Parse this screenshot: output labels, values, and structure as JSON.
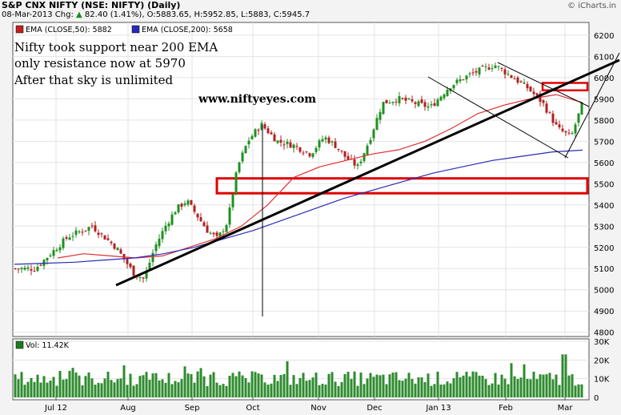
{
  "header": {
    "title": "S&P CNX NIFTY (NSE: NIFTY) (Daily)",
    "date_chg": "08-Mar-2013 Chg:",
    "change": "82.40 (1.41%)",
    "ohlc": ", O:5883.65, H:5952.85, L:5883, C:5945.7",
    "credit": "© iCharts.in"
  },
  "legend": {
    "ema50": "EMA (CLOSE,50): 5882",
    "ema200": "EMA (CLOSE,200): 5658"
  },
  "annotations": {
    "line1": "Nifty took support near 200 EMA",
    "line2": "only resistance now at 5970",
    "line3": "After that sky is unlimited",
    "website": "www.niftyeyes.com"
  },
  "volume_label": "Vol: 11.42K",
  "colors": {
    "up": "#1f8f1f",
    "down": "#b02020",
    "ema50": "#e03030",
    "ema200": "#2a2ab8",
    "trend": "#000000",
    "zone": "#e00000",
    "volume": "#2e8b2e"
  },
  "chart_data": [
    {
      "type": "candlestick",
      "x_tick_labels": [
        "Jul 12",
        "Aug",
        "Sep",
        "Oct",
        "Nov",
        "Dec",
        "Jan 13",
        "Feb",
        "Mar"
      ],
      "y_tick_labels": [
        4800,
        4900,
        5000,
        5100,
        5200,
        5300,
        5400,
        5500,
        5600,
        5700,
        5800,
        5900,
        6000,
        6100,
        6200
      ],
      "ylim": [
        4780,
        6260
      ],
      "series": [
        {
          "name": "EMA (CLOSE,50)",
          "last": 5882
        },
        {
          "name": "EMA (CLOSE,200)",
          "last": 5658
        }
      ],
      "close_points": [
        [
          "Jun 12",
          5100
        ],
        [
          "Jul 12",
          5250
        ],
        [
          "Jul 12",
          5300
        ],
        [
          "Jul 12",
          5200
        ],
        [
          "Aug",
          5080
        ],
        [
          "Aug",
          5050
        ],
        [
          "Aug",
          5200
        ],
        [
          "Aug",
          5300
        ],
        [
          "Aug",
          5380
        ],
        [
          "Aug",
          5420
        ],
        [
          "Sep",
          5350
        ],
        [
          "Sep",
          5280
        ],
        [
          "Sep",
          5240
        ],
        [
          "Sep",
          5320
        ],
        [
          "Sep",
          5580
        ],
        [
          "Sep",
          5700
        ],
        [
          "Oct",
          5780
        ],
        [
          "Oct",
          5700
        ],
        [
          "Oct",
          5680
        ],
        [
          "Oct",
          5640
        ],
        [
          "Nov",
          5720
        ],
        [
          "Nov",
          5680
        ],
        [
          "Nov",
          5620
        ],
        [
          "Nov",
          5580
        ],
        [
          "Nov",
          5700
        ],
        [
          "Dec",
          5880
        ],
        [
          "Dec",
          5900
        ],
        [
          "Dec",
          5880
        ],
        [
          "Dec",
          5860
        ],
        [
          "Jan 13",
          5960
        ],
        [
          "Jan 13",
          6020
        ],
        [
          "Jan 13",
          6060
        ],
        [
          "Feb",
          6000
        ],
        [
          "Feb",
          5950
        ],
        [
          "Feb",
          5880
        ],
        [
          "Feb",
          5760
        ],
        [
          "Mar",
          5720
        ],
        [
          "Mar",
          5880
        ],
        [
          "Mar",
          5945.7
        ]
      ],
      "ema50_points": [
        5150,
        5170,
        5160,
        5150,
        5160,
        5200,
        5240,
        5300,
        5400,
        5530,
        5580,
        5610,
        5640,
        5660,
        5700,
        5760,
        5830,
        5870,
        5900,
        5920,
        5882
      ],
      "ema200_points": [
        5120,
        5125,
        5130,
        5140,
        5150,
        5170,
        5200,
        5240,
        5280,
        5330,
        5380,
        5430,
        5470,
        5510,
        5550,
        5580,
        5610,
        5630,
        5650,
        5658
      ],
      "trendlines": [
        {
          "label": "support",
          "from": [
            "Aug",
            5035
          ],
          "to": [
            "Mar",
            6140
          ]
        },
        {
          "label": "channel-top",
          "from": [
            "Jan 13",
            6080
          ],
          "to": [
            "Mar",
            5800
          ]
        },
        {
          "label": "channel-bottom",
          "from": [
            "Dec",
            6060
          ],
          "to": [
            "Mar",
            5640
          ]
        },
        {
          "label": "up-break",
          "from": [
            "Mar",
            5650
          ],
          "to": [
            "Mar",
            6180
          ]
        },
        {
          "label": "spike",
          "from": [
            "Oct",
            5810
          ],
          "to": [
            "Oct",
            4880
          ]
        }
      ],
      "zones": [
        {
          "label": "support-zone",
          "range": [
            5455,
            5525
          ]
        },
        {
          "label": "resistance",
          "range": [
            5940,
            5975
          ]
        }
      ]
    },
    {
      "type": "bar",
      "title": "Vol",
      "y_tick_labels": [
        "0",
        "10K",
        "20K",
        "30K"
      ],
      "ylim": [
        0,
        30000
      ],
      "last": 11420
    }
  ]
}
